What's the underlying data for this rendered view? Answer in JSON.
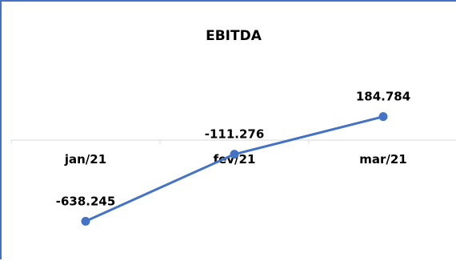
{
  "chart_data": {
    "type": "line",
    "title": "EBITDA",
    "categories": [
      "jan/21",
      "fev/21",
      "mar/21"
    ],
    "series": [
      {
        "values": [
          -638.245,
          -111.276,
          184.784
        ],
        "labels": [
          "-638.245",
          "-111.276",
          "184.784"
        ]
      }
    ],
    "ylim": [
      -900,
      500
    ],
    "grid": false,
    "legend": "none",
    "colors": {
      "line": "#4472c4",
      "axis": "#d9d9d9",
      "frame": "#4472c4"
    }
  }
}
